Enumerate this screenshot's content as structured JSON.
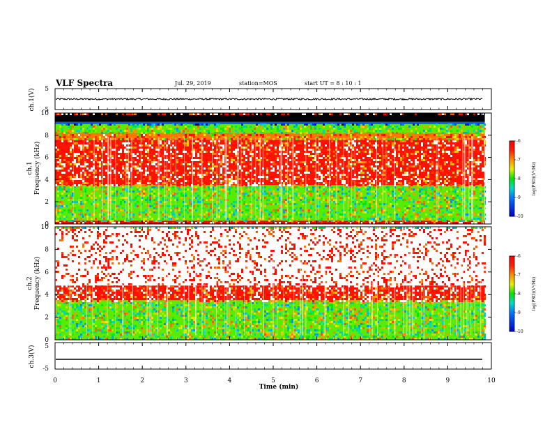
{
  "header": {
    "title": "VLF Spectra",
    "date": "Jul. 29, 2019",
    "station": "station=MOS",
    "start": "start UT =  8 : 10 : 1"
  },
  "chart_data": [
    {
      "type": "line",
      "name": "ch1-waveform",
      "ylabel": "ch.1(V)",
      "ylim": [
        -5,
        5
      ],
      "yticks": [
        "5",
        "-5"
      ],
      "xlim": [
        0,
        10
      ],
      "series": [
        {
          "values_description_mean": 0.0,
          "amplitude_approx": 0.4
        }
      ]
    },
    {
      "type": "heatmap",
      "name": "ch1-spectrogram",
      "ylabel_line1": "ch.1",
      "ylabel_line2": "Frequency (kHz)",
      "ylim": [
        0,
        10
      ],
      "yticks": [
        "0",
        "2",
        "4",
        "6",
        "8",
        "10"
      ],
      "xlim": [
        0,
        9.85
      ],
      "colorbar": {
        "label": "log(PSD)(V²/Hz)",
        "range": [
          -10,
          -6
        ],
        "ticks": [
          "-6",
          "-7",
          "-8",
          "-9",
          "-10"
        ]
      },
      "bands": [
        {
          "from_khz": 0.0,
          "to_khz": 0.3,
          "level": -6.0
        },
        {
          "from_khz": 0.3,
          "to_khz": 3.5,
          "level": -7.8
        },
        {
          "from_khz": 3.5,
          "to_khz": 7.6,
          "level": -6.3
        },
        {
          "from_khz": 7.6,
          "to_khz": 8.2,
          "level": -6.9
        },
        {
          "from_khz": 8.2,
          "to_khz": 9.0,
          "level": -7.8
        },
        {
          "from_khz": 9.0,
          "to_khz": 9.2,
          "level": -9.2
        },
        {
          "from_khz": 9.2,
          "to_khz": 10.0,
          "level": -10.5
        }
      ]
    },
    {
      "type": "heatmap",
      "name": "ch2-spectrogram",
      "ylabel_line1": "ch.2",
      "ylabel_line2": "Frequency (kHz)",
      "ylim": [
        0,
        10
      ],
      "yticks": [
        "0",
        "2",
        "4",
        "6",
        "8",
        "10"
      ],
      "xlim": [
        0,
        9.85
      ],
      "colorbar": {
        "label": "log(PSD)(V²/Hz)",
        "range": [
          -10,
          -6
        ],
        "ticks": [
          "-6",
          "-7",
          "-8",
          "-9",
          "-10"
        ]
      },
      "bands": [
        {
          "from_khz": 0.0,
          "to_khz": 3.5,
          "level": -7.8
        },
        {
          "from_khz": 3.5,
          "to_khz": 4.8,
          "level": -6.3
        },
        {
          "from_khz": 4.8,
          "to_khz": 10.0,
          "level": -5.8
        }
      ]
    },
    {
      "type": "line",
      "name": "ch3-waveform",
      "ylabel": "ch.3(V)",
      "ylim": [
        -5,
        5
      ],
      "yticks": [
        "5",
        "-5"
      ],
      "xlim": [
        0,
        10
      ],
      "series": [
        {
          "values_description_mean": -1.3,
          "amplitude_approx": 0.0
        }
      ]
    }
  ],
  "xaxis": {
    "label": "Time (min)",
    "ticks": [
      "0",
      "1",
      "2",
      "3",
      "4",
      "5",
      "6",
      "7",
      "8",
      "9",
      "10"
    ],
    "range": [
      0,
      10
    ]
  },
  "colors": {
    "background": "#ffffff",
    "frame": "#000000",
    "cmap": [
      "#000000",
      "#0000ff",
      "#00b0ff",
      "#00ff00",
      "#ffff00",
      "#ff8000",
      "#ff0000",
      "#ffffff"
    ]
  }
}
